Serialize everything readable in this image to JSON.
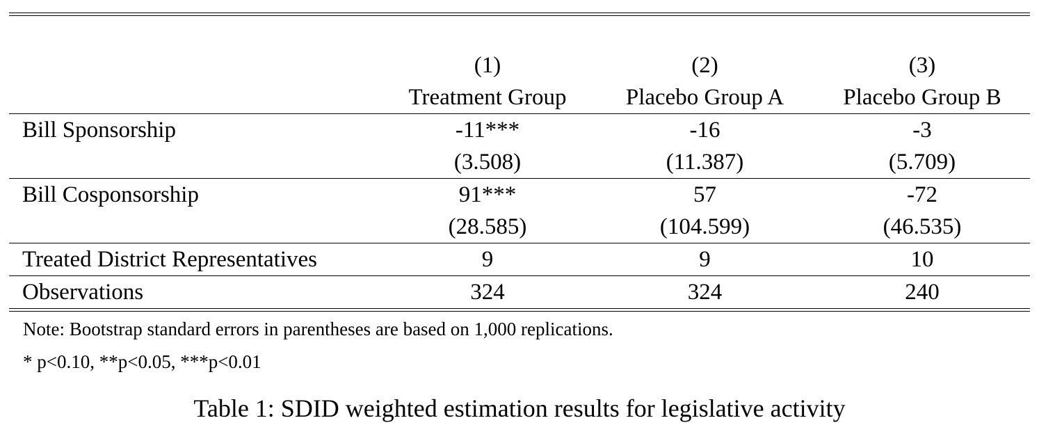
{
  "table": {
    "column_numbers": [
      "(1)",
      "(2)",
      "(3)"
    ],
    "column_headers": [
      "Treatment Group",
      "Placebo Group A",
      "Placebo Group B"
    ],
    "rows": [
      {
        "label": "Bill Sponsorship",
        "values": [
          "-11***",
          "-16",
          "-3"
        ],
        "std_errors": [
          "(3.508)",
          "(11.387)",
          "(5.709)"
        ]
      },
      {
        "label": "Bill Cosponsorship",
        "values": [
          "91***",
          "57",
          "-72"
        ],
        "std_errors": [
          "(28.585)",
          "(104.599)",
          "(46.535)"
        ]
      },
      {
        "label": "Treated District Representatives",
        "values": [
          "9",
          "9",
          "10"
        ]
      },
      {
        "label": "Observations",
        "values": [
          "324",
          "324",
          "240"
        ]
      }
    ]
  },
  "notes": [
    "Note: Bootstrap standard errors in parentheses are based on 1,000 replications.",
    "* p<0.10, **p<0.05, ***p<0.01"
  ],
  "caption": "Table 1: SDID weighted estimation results for legislative activity"
}
